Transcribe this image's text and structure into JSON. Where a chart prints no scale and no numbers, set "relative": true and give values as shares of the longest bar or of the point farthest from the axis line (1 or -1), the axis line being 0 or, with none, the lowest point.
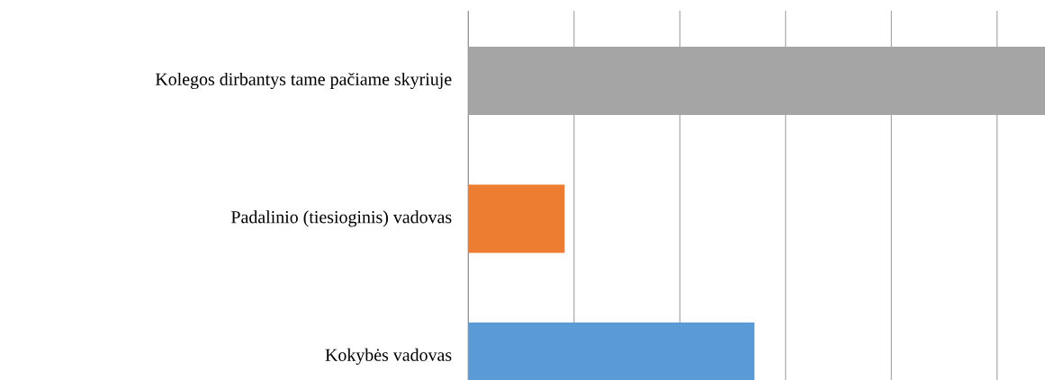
{
  "chart_data": {
    "type": "bar",
    "orientation": "horizontal",
    "relative": true,
    "grid": "x",
    "categories": [
      "Kolegos dirbantys tame pačiame skyriuje",
      "Padalinio (tiesioginis) vadovas",
      "Kokybės vadovas"
    ],
    "values": [
      1,
      0.167,
      0.496
    ],
    "colors": [
      "#a5a5a5",
      "#ed7d31",
      "#5b9bd5"
    ]
  }
}
